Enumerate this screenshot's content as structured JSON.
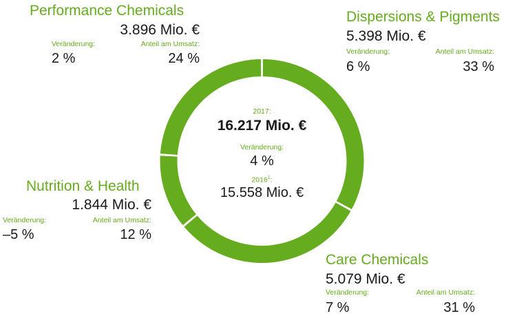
{
  "chart_data": {
    "type": "pie",
    "title": "",
    "total": {
      "label": "2017:",
      "value": "16.217 Mio. €",
      "change_label": "Veränderung:",
      "change": "4 %"
    },
    "previous": {
      "label": "2016",
      "footnote": "1",
      "suffix": ":",
      "value": "15.558 Mio. €"
    },
    "segments": [
      {
        "name": "Dispersions & Pigments",
        "amount": "5.398 Mio. €",
        "change_label": "Veränderung:",
        "change": "6 %",
        "share_label": "Anteil am Umsatz:",
        "share": "33 %",
        "value": 33
      },
      {
        "name": "Care Chemicals",
        "amount": "5.079 Mio. €",
        "change_label": "Veränderung:",
        "change": "7 %",
        "share_label": "Anteil am Umsatz:",
        "share": "31 %",
        "value": 31
      },
      {
        "name": "Nutrition & Health",
        "amount": "1.844 Mio. €",
        "change_label": "Veränderung:",
        "change": "–5 %",
        "share_label": "Anteil am Umsatz:",
        "share": "12 %",
        "value": 12
      },
      {
        "name": "Performance Chemicals",
        "amount": "3.896 Mio. €",
        "change_label": "Veränderung:",
        "change": "2 %",
        "share_label": "Anteil am Umsatz:",
        "share": "24 %",
        "value": 24
      }
    ],
    "colors": {
      "ring": "#65ac1e",
      "gap": "#ffffff",
      "text": "#1a1a1a"
    }
  }
}
